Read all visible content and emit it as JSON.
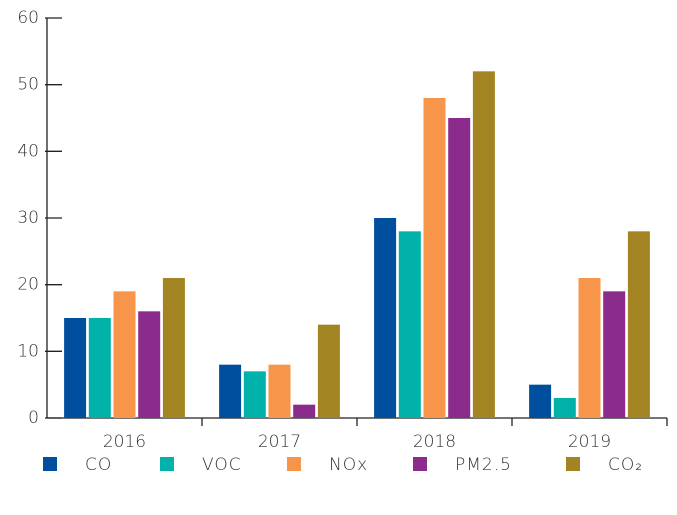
{
  "chart_data": {
    "type": "bar",
    "categories": [
      "2016",
      "2017",
      "2018",
      "2019"
    ],
    "series": [
      {
        "name": "CO",
        "color": "#004f9f",
        "values": [
          15,
          8,
          30,
          5
        ]
      },
      {
        "name": "VOC",
        "color": "#00b2a9",
        "values": [
          15,
          7,
          28,
          3
        ]
      },
      {
        "name": "NOx",
        "color": "#f7964a",
        "values": [
          19,
          8,
          48,
          21
        ]
      },
      {
        "name": "PM2.5",
        "color": "#8b2c8c",
        "values": [
          16,
          2,
          45,
          19
        ]
      },
      {
        "name": "CO₂",
        "color": "#a38422",
        "values": [
          21,
          14,
          52,
          28
        ]
      }
    ],
    "ylim": [
      0,
      60
    ],
    "yticks": [
      0,
      10,
      20,
      30,
      40,
      50,
      60
    ],
    "grid": false,
    "legend": "bottom"
  }
}
